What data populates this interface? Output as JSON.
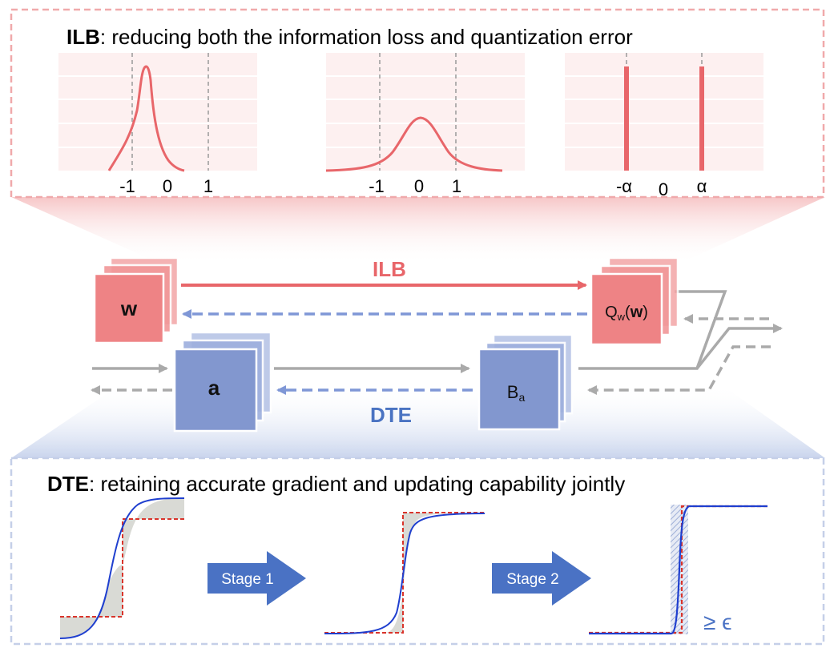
{
  "top_panel": {
    "title_bold": "ILB",
    "title_rest": ": reducing both the information loss and quantization error",
    "plots": [
      {
        "ticks": [
          "-1",
          "0",
          "1"
        ]
      },
      {
        "ticks": [
          "-1",
          "0",
          "1"
        ]
      },
      {
        "ticks": [
          "-α",
          "0",
          "α"
        ]
      }
    ]
  },
  "middle": {
    "ilb_label": "ILB",
    "dte_label": "DTE",
    "w_label": "w",
    "qw_prefix": "Q",
    "qw_sub": "w",
    "qw_open": "(",
    "qw_bold": "w",
    "qw_close": ")",
    "a_label": "a",
    "ba_main": "B",
    "ba_sub": "a"
  },
  "bottom_panel": {
    "title_bold": "DTE",
    "title_rest": ":  retaining accurate gradient and updating capability jointly",
    "stage1_label": "Stage 1",
    "stage2_label": "Stage 2",
    "epsilon_label": "≥ ϵ"
  },
  "colors": {
    "red": "#e8666a",
    "red_fill": "#ee8385",
    "blue_fill": "#8297cf",
    "blue_arrow": "#7f97d6",
    "dte_blue": "#4a73c2",
    "gray": "#aaaaaa",
    "stage_arrow": "#4a72c4",
    "curve_blue": "#1f3fcf",
    "step_red": "#d9342b"
  }
}
